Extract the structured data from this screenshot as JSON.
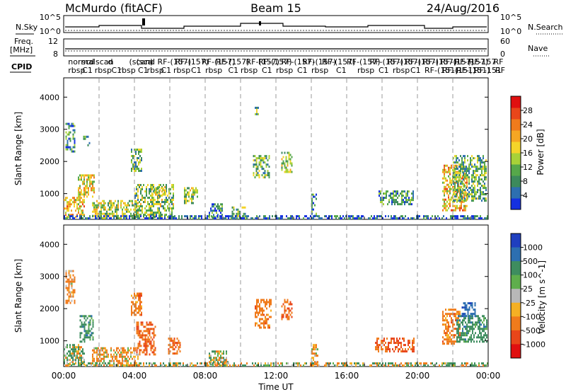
{
  "header": {
    "station": "McMurdo (fitACF)",
    "beam": "Beam 15",
    "date": "24/Aug/2016"
  },
  "nsky": {
    "label": "N.Sky",
    "right_label": "N.Search",
    "left_ticks": [
      "10^5",
      "10^0"
    ],
    "right_ticks": [
      "10^5",
      "10^0"
    ]
  },
  "freq": {
    "label_top": "Freq.",
    "label_bottom": "[MHz]",
    "right_label": "Nave",
    "left_ticks": [
      "12",
      "8"
    ],
    "right_ticks": [
      "60",
      "0"
    ]
  },
  "cpid": {
    "label": "CPID",
    "row1": [
      {
        "t": 0.25,
        "s": "normal"
      },
      {
        "t": 1.0,
        "s": "sc"
      },
      {
        "t": 1.45,
        "s": "d"
      },
      {
        "t": 1.8,
        "s": "scan"
      },
      {
        "t": 2.5,
        "s": "d"
      },
      {
        "t": 3.7,
        "s": "(scan)"
      },
      {
        "t": 4.1,
        "s": "(sca"
      },
      {
        "t": 4.6,
        "s": "nd"
      },
      {
        "t": 5.3,
        "s": "RF-(157)"
      },
      {
        "t": 6.3,
        "s": "RF-(157)"
      },
      {
        "t": 7.8,
        "s": "RF-(157)"
      },
      {
        "t": 8.6,
        "s": "RF-(157)"
      },
      {
        "t": 10.3,
        "s": "RF-(157)"
      },
      {
        "t": 11.0,
        "s": "RF-(157)"
      },
      {
        "t": 12.3,
        "s": "RF-(157)"
      },
      {
        "t": 13.5,
        "s": "RF-(157)"
      },
      {
        "t": 14.6,
        "s": "RF-(157)"
      },
      {
        "t": 16.0,
        "s": "RF-(157)"
      },
      {
        "t": 17.3,
        "s": "RF-(157)"
      },
      {
        "t": 18.3,
        "s": "RF-(157)"
      },
      {
        "t": 19.3,
        "s": "RF-(157)"
      },
      {
        "t": 20.3,
        "s": "RF-(157)"
      },
      {
        "t": 21.3,
        "s": "RF-(157)"
      },
      {
        "t": 22.1,
        "s": "RF-(157)"
      },
      {
        "t": 22.9,
        "s": "RF-157"
      },
      {
        "t": 24.3,
        "s": "RF"
      }
    ],
    "row2": [
      {
        "t": 0.25,
        "s": "rbsp"
      },
      {
        "t": 1.05,
        "s": "C1"
      },
      {
        "t": 1.75,
        "s": "rbsp"
      },
      {
        "t": 2.7,
        "s": "C1"
      },
      {
        "t": 3.1,
        "s": "rbsp"
      },
      {
        "t": 4.2,
        "s": "C1"
      },
      {
        "t": 4.7,
        "s": "rbsp"
      },
      {
        "t": 5.5,
        "s": "C1"
      },
      {
        "t": 6.2,
        "s": "rbsp"
      },
      {
        "t": 7.2,
        "s": "C1"
      },
      {
        "t": 8.0,
        "s": "rbsp"
      },
      {
        "t": 9.3,
        "s": "C1"
      },
      {
        "t": 10.0,
        "s": "rbsp"
      },
      {
        "t": 11.2,
        "s": "C1"
      },
      {
        "t": 12.0,
        "s": "rbsp"
      },
      {
        "t": 13.2,
        "s": "C1"
      },
      {
        "t": 14.0,
        "s": "rbsp"
      },
      {
        "t": 15.4,
        "s": "C1"
      },
      {
        "t": 16.6,
        "s": "rbsp"
      },
      {
        "t": 17.8,
        "s": "C1"
      },
      {
        "t": 18.6,
        "s": "rbsp"
      },
      {
        "t": 19.6,
        "s": "C1"
      },
      {
        "t": 20.4,
        "s": "RF-(151)"
      },
      {
        "t": 21.4,
        "s": "RF-(151)"
      },
      {
        "t": 22.2,
        "s": "RF-(151)"
      },
      {
        "t": 23.2,
        "s": "RF-151"
      },
      {
        "t": 24.4,
        "s": "RF"
      }
    ]
  },
  "range_axis_label": "Slant Range [km]",
  "x_axis_label": "Time UT",
  "x_tick_labels": [
    "00:00",
    "04:00",
    "08:00",
    "12:00",
    "16:00",
    "20:00",
    "00:00"
  ],
  "power_colorbar": {
    "label": "Power [dB]",
    "ticks": [
      "4",
      "8",
      "12",
      "16",
      "20",
      "24",
      "28"
    ],
    "colors": [
      "#1530e0",
      "#2d6fb0",
      "#3c8a5c",
      "#56a84a",
      "#a8d238",
      "#f4d42a",
      "#f5a623",
      "#f07b1c",
      "#e8461a",
      "#e01010"
    ]
  },
  "velocity_colorbar": {
    "label": "Velocity [m s^-1]",
    "ticks": [
      "1000",
      "500",
      "100",
      "25",
      "-25",
      "-100",
      "-500",
      "-1000"
    ],
    "colors": [
      "#1f3fbf",
      "#2d6fb0",
      "#3e8d5f",
      "#5fae4c",
      "#b8b8b8",
      "#f5b024",
      "#f07b1c",
      "#e8461a",
      "#e01010"
    ]
  },
  "chart_data": [
    {
      "type": "heatmap",
      "title": "Power",
      "xlabel": "",
      "ylabel": "Slant Range [km]",
      "xlim": [
        0,
        24
      ],
      "ylim": [
        200,
        4600
      ],
      "x_unit": "hours UT",
      "grid": false,
      "regions": [
        {
          "t0": 0.0,
          "t1": 1.2,
          "r0": 250,
          "r1": 900,
          "v": 20
        },
        {
          "t0": 0.1,
          "t1": 0.6,
          "r0": 2300,
          "r1": 3200,
          "v": 10
        },
        {
          "t0": 0.8,
          "t1": 1.7,
          "r0": 900,
          "r1": 1600,
          "v": 18
        },
        {
          "t0": 1.1,
          "t1": 1.5,
          "r0": 2500,
          "r1": 2800,
          "v": 10
        },
        {
          "t0": 1.6,
          "t1": 4.2,
          "r0": 250,
          "r1": 800,
          "v": 16
        },
        {
          "t0": 3.8,
          "t1": 4.4,
          "r0": 1700,
          "r1": 2400,
          "v": 12
        },
        {
          "t0": 4.0,
          "t1": 6.2,
          "r0": 250,
          "r1": 1300,
          "v": 14
        },
        {
          "t0": 5.0,
          "t1": 5.8,
          "r0": 900,
          "r1": 1200,
          "v": 16
        },
        {
          "t0": 6.8,
          "t1": 7.6,
          "r0": 700,
          "r1": 1200,
          "v": 14
        },
        {
          "t0": 8.2,
          "t1": 9.0,
          "r0": 250,
          "r1": 700,
          "v": 8
        },
        {
          "t0": 9.5,
          "t1": 10.3,
          "r0": 250,
          "r1": 600,
          "v": 12
        },
        {
          "t0": 10.8,
          "t1": 11.0,
          "r0": 3400,
          "r1": 3700,
          "v": 12
        },
        {
          "t0": 10.7,
          "t1": 11.6,
          "r0": 1500,
          "r1": 2200,
          "v": 12
        },
        {
          "t0": 12.3,
          "t1": 12.9,
          "r0": 1700,
          "r1": 2300,
          "v": 14
        },
        {
          "t0": 14.0,
          "t1": 14.3,
          "r0": 300,
          "r1": 1000,
          "v": 10
        },
        {
          "t0": 17.8,
          "t1": 19.8,
          "r0": 650,
          "r1": 1100,
          "v": 10
        },
        {
          "t0": 21.4,
          "t1": 22.8,
          "r0": 500,
          "r1": 1900,
          "v": 20
        },
        {
          "t0": 22.0,
          "t1": 23.9,
          "r0": 800,
          "r1": 2200,
          "v": 12
        },
        {
          "t0": 0.0,
          "t1": 24.0,
          "r0": 220,
          "r1": 330,
          "v": 6
        }
      ]
    },
    {
      "type": "heatmap",
      "title": "Velocity",
      "xlabel": "Time UT",
      "ylabel": "Slant Range [km]",
      "xlim": [
        0,
        24
      ],
      "ylim": [
        200,
        4600
      ],
      "x_unit": "hours UT",
      "grid": false,
      "regions": [
        {
          "t0": 0.0,
          "t1": 1.2,
          "r0": 250,
          "r1": 900,
          "v": 100
        },
        {
          "t0": 0.1,
          "t1": 0.6,
          "r0": 2200,
          "r1": 3200,
          "v": -200
        },
        {
          "t0": 0.9,
          "t1": 1.7,
          "r0": 1000,
          "r1": 1800,
          "v": 300
        },
        {
          "t0": 1.6,
          "t1": 4.2,
          "r0": 250,
          "r1": 800,
          "v": -150
        },
        {
          "t0": 3.8,
          "t1": 4.4,
          "r0": 1800,
          "r1": 2500,
          "v": -300
        },
        {
          "t0": 4.1,
          "t1": 5.2,
          "r0": 600,
          "r1": 1600,
          "v": -400
        },
        {
          "t0": 5.9,
          "t1": 6.6,
          "r0": 600,
          "r1": 1100,
          "v": -400
        },
        {
          "t0": 8.2,
          "t1": 9.3,
          "r0": 250,
          "r1": 700,
          "v": 50
        },
        {
          "t0": 10.8,
          "t1": 11.7,
          "r0": 1400,
          "r1": 2300,
          "v": -300
        },
        {
          "t0": 12.3,
          "t1": 12.9,
          "r0": 1700,
          "r1": 2300,
          "v": -400
        },
        {
          "t0": 14.0,
          "t1": 14.4,
          "r0": 300,
          "r1": 900,
          "v": -200
        },
        {
          "t0": 17.6,
          "t1": 19.8,
          "r0": 650,
          "r1": 1100,
          "v": -500
        },
        {
          "t0": 21.4,
          "t1": 22.4,
          "r0": 900,
          "r1": 2000,
          "v": -300
        },
        {
          "t0": 22.2,
          "t1": 23.9,
          "r0": 1000,
          "r1": 1800,
          "v": 300
        },
        {
          "t0": 22.5,
          "t1": 23.3,
          "r0": 1800,
          "r1": 2200,
          "v": 800
        },
        {
          "t0": 0.0,
          "t1": 24.0,
          "r0": 220,
          "r1": 330,
          "v": 20
        }
      ]
    }
  ]
}
